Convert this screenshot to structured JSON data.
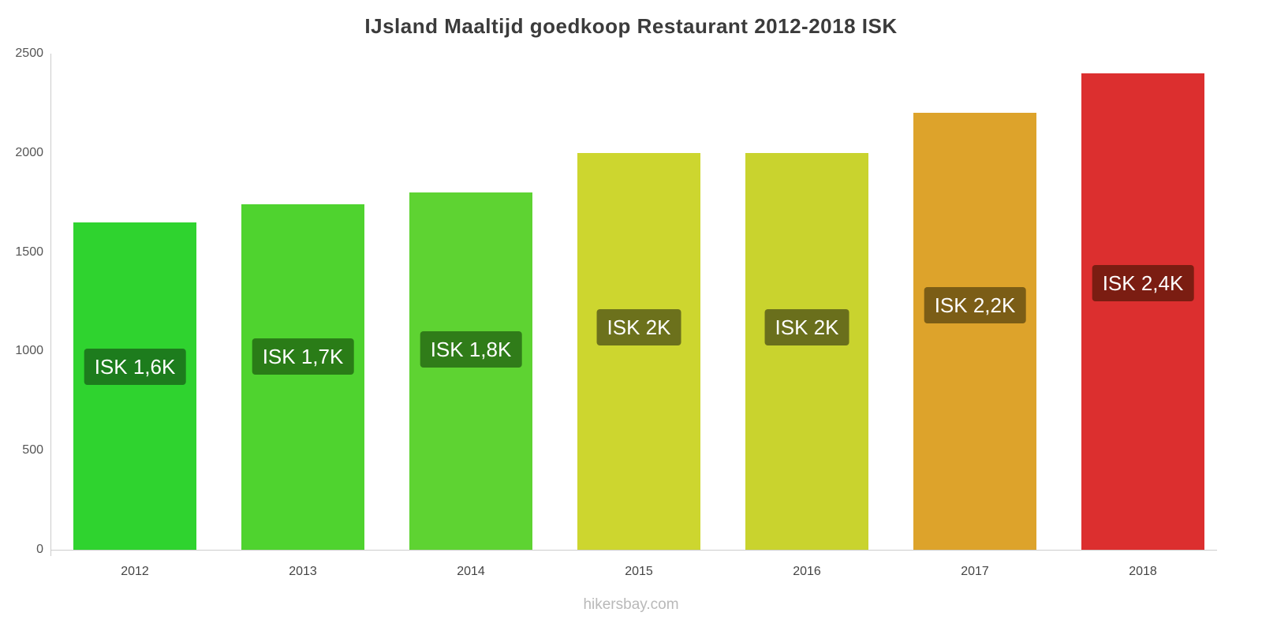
{
  "title": "IJsland Maaltijd goedkoop Restaurant 2012-2018 ISK",
  "footer": "hikersbay.com",
  "chart_data": {
    "type": "bar",
    "title": "IJsland Maaltijd goedkoop Restaurant 2012-2018 ISK",
    "categories": [
      "2012",
      "2013",
      "2014",
      "2015",
      "2016",
      "2017",
      "2018"
    ],
    "values": [
      1650,
      1740,
      1800,
      2000,
      2000,
      2200,
      2400
    ],
    "value_labels": [
      "ISK 1,6K",
      "ISK 1,7K",
      "ISK 1,8K",
      "ISK 2K",
      "ISK 2K",
      "ISK 2,2K",
      "ISK 2,4K"
    ],
    "bar_colors": [
      "#2fd32f",
      "#4fd32f",
      "#5ed332",
      "#cdd62f",
      "#c9d32e",
      "#dda32b",
      "#dc2f2f"
    ],
    "label_bg_colors": [
      "#1d7c1d",
      "#2a7c17",
      "#307c19",
      "#6c711c",
      "#6a6f1c",
      "#7b5d16",
      "#7b1d12"
    ],
    "xlabel": "",
    "ylabel": "",
    "ylim": [
      0,
      2500
    ],
    "yticks": [
      0,
      500,
      1000,
      1500,
      2000,
      2500
    ],
    "grid": false,
    "legend": false,
    "currency": "ISK"
  }
}
